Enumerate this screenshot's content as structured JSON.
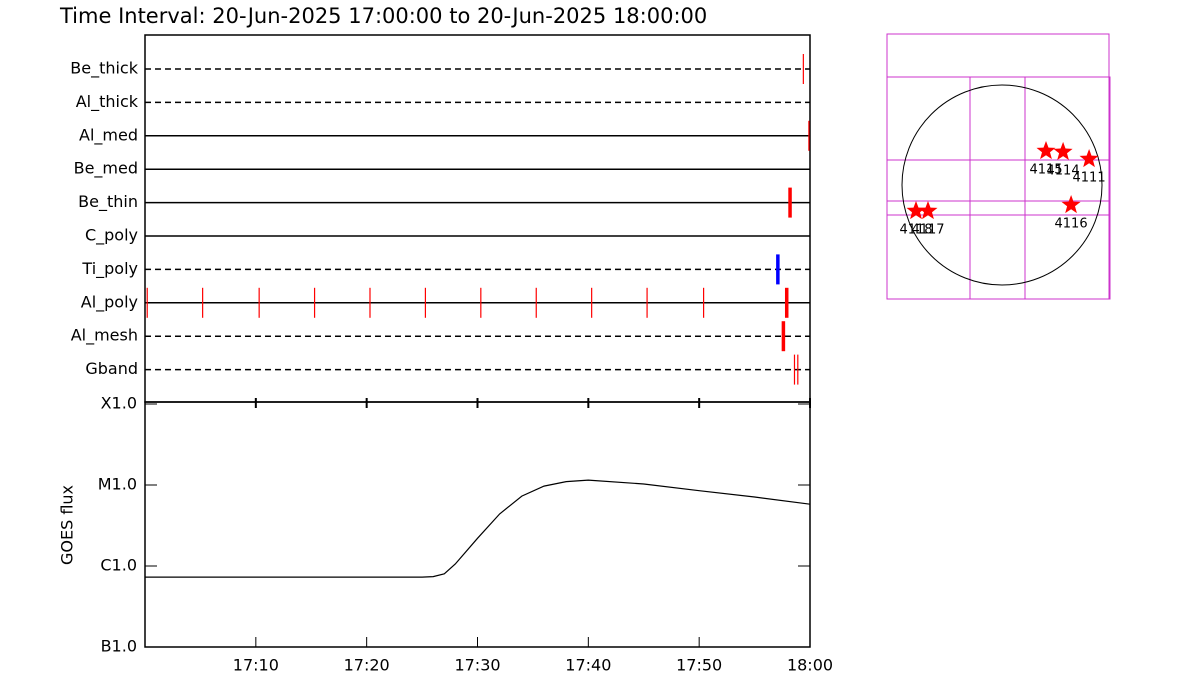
{
  "title": "Time Interval: 20-Jun-2025 17:00:00 to 20-Jun-2025 18:00:00",
  "chart_data": [
    {
      "type": "timeline",
      "xlim": [
        0,
        60
      ],
      "rows": [
        {
          "label": "Be_thick",
          "style": "dashed",
          "obs": [
            {
              "t": 59.4,
              "color": "#ff0000",
              "thick": false
            }
          ]
        },
        {
          "label": "Al_thick",
          "style": "dashed",
          "obs": []
        },
        {
          "label": "Al_med",
          "style": "solid",
          "obs": [
            {
              "t": 59.9,
              "color": "#ff0000",
              "thick": false
            }
          ]
        },
        {
          "label": "Be_med",
          "style": "solid",
          "obs": []
        },
        {
          "label": "Be_thin",
          "style": "solid",
          "obs": [
            {
              "t": 58.2,
              "color": "#ff0000",
              "thick": true
            }
          ]
        },
        {
          "label": "C_poly",
          "style": "solid",
          "obs": []
        },
        {
          "label": "Ti_poly",
          "style": "dashed",
          "obs": [
            {
              "t": 57.1,
              "color": "#0000ff",
              "thick": true
            }
          ]
        },
        {
          "label": "Al_poly",
          "style": "solid",
          "obs": [
            {
              "t": 0.2,
              "color": "#ff0000",
              "thick": false
            },
            {
              "t": 5.2,
              "color": "#ff0000",
              "thick": false
            },
            {
              "t": 10.3,
              "color": "#ff0000",
              "thick": false
            },
            {
              "t": 15.3,
              "color": "#ff0000",
              "thick": false
            },
            {
              "t": 20.3,
              "color": "#ff0000",
              "thick": false
            },
            {
              "t": 25.3,
              "color": "#ff0000",
              "thick": false
            },
            {
              "t": 30.3,
              "color": "#ff0000",
              "thick": false
            },
            {
              "t": 35.3,
              "color": "#ff0000",
              "thick": false
            },
            {
              "t": 40.3,
              "color": "#ff0000",
              "thick": false
            },
            {
              "t": 45.3,
              "color": "#ff0000",
              "thick": false
            },
            {
              "t": 50.4,
              "color": "#ff0000",
              "thick": false
            },
            {
              "t": 57.9,
              "color": "#ff0000",
              "thick": true
            }
          ]
        },
        {
          "label": "Al_mesh",
          "style": "dashed",
          "obs": [
            {
              "t": 57.6,
              "color": "#ff0000",
              "thick": true
            }
          ]
        },
        {
          "label": "Gband",
          "style": "dashed",
          "obs": [
            {
              "t": 58.6,
              "color": "#ff0000",
              "thick": false
            },
            {
              "t": 58.9,
              "color": "#ff0000",
              "thick": false
            }
          ]
        }
      ]
    },
    {
      "type": "line",
      "ylabel": "GOES flux",
      "log": true,
      "color": "#000000",
      "xlim": [
        0,
        60
      ],
      "ylim": [
        1e-07,
        0.0001
      ],
      "xticks": [
        {
          "value": 10,
          "label": "17:10"
        },
        {
          "value": 20,
          "label": "17:20"
        },
        {
          "value": 30,
          "label": "17:30"
        },
        {
          "value": 40,
          "label": "17:40"
        },
        {
          "value": 50,
          "label": "17:50"
        },
        {
          "value": 60,
          "label": "18:00"
        }
      ],
      "yticks": [
        {
          "value": 0.0001,
          "label": "X1.0"
        },
        {
          "value": 1e-05,
          "label": "M1.0"
        },
        {
          "value": 1e-06,
          "label": "C1.0"
        },
        {
          "value": 1e-07,
          "label": "B1.0"
        }
      ],
      "x": [
        0,
        5,
        10,
        15,
        20,
        25,
        26,
        27,
        28,
        30,
        32,
        34,
        36,
        38,
        40,
        45,
        50,
        55,
        60
      ],
      "values": [
        7.3e-07,
        7.3e-07,
        7.3e-07,
        7.3e-07,
        7.3e-07,
        7.3e-07,
        7.4e-07,
        8e-07,
        1.06e-06,
        2.2e-06,
        4.4e-06,
        7.3e-06,
        9.7e-06,
        1.1e-05,
        1.15e-05,
        1.03e-05,
        8.5e-06,
        7.1e-06,
        5.8e-06
      ]
    }
  ],
  "map": {
    "regions": [
      {
        "label": "4115",
        "x": 418,
        "y": 323
      },
      {
        "label": "4114",
        "x": 580,
        "y": 314
      },
      {
        "label": "4111",
        "x": 827,
        "y": 247
      },
      {
        "label": "4116",
        "x": 656,
        "y": -190
      },
      {
        "label": "4118",
        "x": -817,
        "y": -247
      },
      {
        "label": "4117",
        "x": -703,
        "y": -247
      }
    ]
  }
}
